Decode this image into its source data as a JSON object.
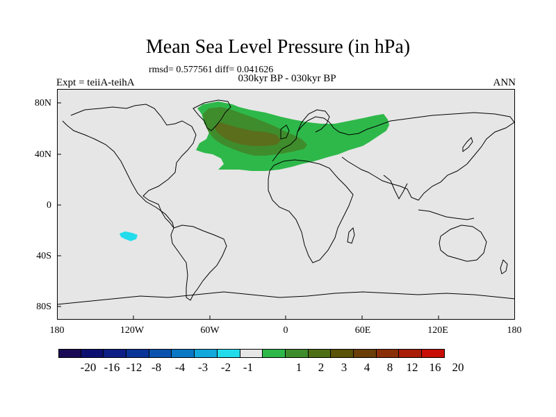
{
  "title": "Mean Sea Level Pressure (in hPa)",
  "stats": "rmsd= 0.577561 diff= 0.041626",
  "subtitle": "030kyr BP - 030kyr BP",
  "left_label": "Expt = teiiA-teihA",
  "right_label": "ANN",
  "map": {
    "projection": "cylindrical-equidistant",
    "lon_range": [
      -180,
      180
    ],
    "lat_range": [
      -90,
      90
    ],
    "y_ticks": [
      "80N",
      "40N",
      "0",
      "40S",
      "80S"
    ],
    "x_ticks": [
      "180",
      "120W",
      "60W",
      "0",
      "60E",
      "120E",
      "180"
    ],
    "background_color": "#e6e6e6",
    "land_outline_color": "#000000"
  },
  "colorbar": {
    "colors": [
      "#1a0a55",
      "#0b1070",
      "#0d1e86",
      "#0a3598",
      "#0a52ad",
      "#0a78c4",
      "#12a8dc",
      "#22dcec",
      "#e6e6e6",
      "#2eb84a",
      "#3f8c2c",
      "#4e6e14",
      "#5a5207",
      "#6a3f07",
      "#8a3008",
      "#a81c08",
      "#c70d05"
    ],
    "labels": [
      "-20",
      "-16",
      "-12",
      "-8",
      "-4",
      "-3",
      "-2",
      "-1",
      "1",
      "2",
      "3",
      "4",
      "8",
      "12",
      "16",
      "20"
    ]
  },
  "anomaly_colors": {
    "level_2": "#2eb84a",
    "level_3": "#3f8c2c",
    "level_4": "#5a6e1c",
    "level_minus_2": "#22dcec"
  }
}
